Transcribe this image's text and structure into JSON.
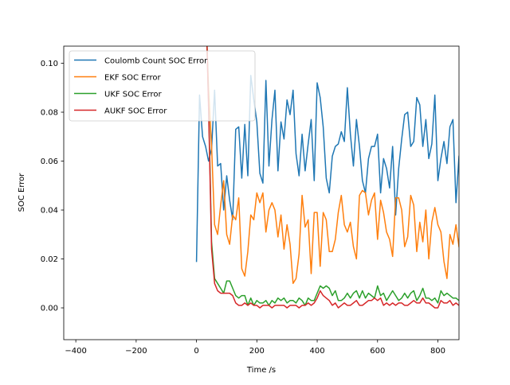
{
  "chart_data": {
    "type": "line",
    "xlabel": "Time /s",
    "ylabel": "SOC Error",
    "xlim": [
      -440,
      870
    ],
    "ylim": [
      -0.013,
      0.107
    ],
    "xticks": [
      -400,
      -200,
      0,
      200,
      400,
      600,
      800
    ],
    "xtick_labels": [
      "−400",
      "−200",
      "0",
      "200",
      "400",
      "600",
      "800"
    ],
    "yticks": [
      0.0,
      0.02,
      0.04,
      0.06,
      0.08,
      0.1
    ],
    "ytick_labels": [
      "0.00",
      "0.02",
      "0.04",
      "0.06",
      "0.08",
      "0.10"
    ],
    "legend_position": "top-left",
    "grid": false,
    "series": [
      {
        "name": "Coulomb Count SOC Error",
        "color": "#1f77b4",
        "x": [
          0,
          10,
          20,
          30,
          40,
          50,
          60,
          70,
          80,
          90,
          100,
          110,
          120,
          130,
          140,
          150,
          160,
          170,
          180,
          190,
          200,
          210,
          220,
          230,
          240,
          250,
          260,
          270,
          280,
          290,
          300,
          310,
          320,
          330,
          340,
          350,
          360,
          370,
          380,
          390,
          400,
          410,
          420,
          430,
          440,
          450,
          460,
          470,
          480,
          490,
          500,
          510,
          520,
          530,
          540,
          550,
          560,
          570,
          580,
          590,
          600,
          610,
          620,
          630,
          640,
          650,
          660,
          670,
          680,
          690,
          700,
          710,
          720,
          730,
          740,
          750,
          760,
          770,
          780,
          790,
          800,
          810,
          820,
          830,
          840,
          850,
          860,
          870
        ],
        "y": [
          0.019,
          0.087,
          0.07,
          0.066,
          0.06,
          0.065,
          0.089,
          0.058,
          0.059,
          0.04,
          0.054,
          0.044,
          0.036,
          0.073,
          0.074,
          0.053,
          0.075,
          0.054,
          0.095,
          0.085,
          0.076,
          0.055,
          0.051,
          0.093,
          0.058,
          0.077,
          0.089,
          0.056,
          0.076,
          0.069,
          0.085,
          0.079,
          0.089,
          0.063,
          0.054,
          0.071,
          0.056,
          0.067,
          0.077,
          0.052,
          0.092,
          0.086,
          0.074,
          0.053,
          0.047,
          0.062,
          0.066,
          0.067,
          0.072,
          0.068,
          0.09,
          0.071,
          0.058,
          0.077,
          0.066,
          0.052,
          0.047,
          0.061,
          0.066,
          0.066,
          0.071,
          0.047,
          0.061,
          0.057,
          0.049,
          0.066,
          0.038,
          0.057,
          0.069,
          0.079,
          0.08,
          0.066,
          0.068,
          0.086,
          0.083,
          0.066,
          0.077,
          0.061,
          0.067,
          0.087,
          0.052,
          0.061,
          0.068,
          0.059,
          0.074,
          0.077,
          0.043,
          0.062
        ]
      },
      {
        "name": "EKF SOC Error",
        "color": "#ff7f0e",
        "x": [
          35,
          40,
          50,
          60,
          70,
          80,
          90,
          100,
          110,
          120,
          130,
          140,
          150,
          160,
          170,
          180,
          190,
          200,
          210,
          220,
          230,
          240,
          250,
          260,
          270,
          280,
          290,
          300,
          310,
          320,
          330,
          340,
          350,
          360,
          370,
          380,
          390,
          400,
          410,
          420,
          430,
          440,
          450,
          460,
          470,
          480,
          490,
          500,
          510,
          520,
          530,
          540,
          550,
          560,
          570,
          580,
          590,
          600,
          610,
          620,
          630,
          640,
          650,
          660,
          670,
          680,
          690,
          700,
          710,
          720,
          730,
          740,
          750,
          760,
          770,
          780,
          790,
          800,
          810,
          820,
          830,
          840,
          850,
          860,
          870
        ],
        "y": [
          0.107,
          0.09,
          0.066,
          0.034,
          0.03,
          0.042,
          0.052,
          0.03,
          0.026,
          0.038,
          0.036,
          0.045,
          0.016,
          0.013,
          0.023,
          0.038,
          0.036,
          0.047,
          0.043,
          0.047,
          0.031,
          0.04,
          0.043,
          0.04,
          0.029,
          0.038,
          0.024,
          0.034,
          0.026,
          0.01,
          0.012,
          0.022,
          0.046,
          0.033,
          0.036,
          0.014,
          0.039,
          0.039,
          0.017,
          0.039,
          0.036,
          0.023,
          0.023,
          0.028,
          0.039,
          0.046,
          0.034,
          0.031,
          0.035,
          0.025,
          0.02,
          0.046,
          0.048,
          0.047,
          0.038,
          0.044,
          0.047,
          0.028,
          0.044,
          0.039,
          0.031,
          0.028,
          0.021,
          0.045,
          0.045,
          0.04,
          0.025,
          0.029,
          0.046,
          0.042,
          0.023,
          0.035,
          0.027,
          0.04,
          0.02,
          0.035,
          0.041,
          0.034,
          0.031,
          0.019,
          0.012,
          0.03,
          0.026,
          0.034,
          0.025
        ]
      },
      {
        "name": "UKF SOC Error",
        "color": "#2ca02c",
        "x": [
          35,
          40,
          50,
          60,
          70,
          80,
          90,
          100,
          110,
          120,
          130,
          140,
          150,
          160,
          170,
          180,
          190,
          200,
          210,
          220,
          230,
          240,
          250,
          260,
          270,
          280,
          290,
          300,
          310,
          320,
          330,
          340,
          350,
          360,
          370,
          380,
          390,
          400,
          410,
          420,
          430,
          440,
          450,
          460,
          470,
          480,
          490,
          500,
          510,
          520,
          530,
          540,
          550,
          560,
          570,
          580,
          590,
          600,
          610,
          620,
          630,
          640,
          650,
          660,
          670,
          680,
          690,
          700,
          710,
          720,
          730,
          740,
          750,
          760,
          770,
          780,
          790,
          800,
          810,
          820,
          830,
          840,
          850,
          860,
          870
        ],
        "y": [
          0.107,
          0.085,
          0.027,
          0.012,
          0.01,
          0.008,
          0.006,
          0.011,
          0.011,
          0.008,
          0.005,
          0.004,
          0.005,
          0.005,
          0.001,
          0.004,
          0.001,
          0.003,
          0.002,
          0.002,
          0.003,
          0.001,
          0.003,
          0.002,
          0.004,
          0.003,
          0.004,
          0.002,
          0.003,
          0.003,
          0.002,
          0.004,
          0.003,
          0.001,
          0.004,
          0.003,
          0.003,
          0.006,
          0.009,
          0.008,
          0.009,
          0.008,
          0.005,
          0.007,
          0.003,
          0.003,
          0.004,
          0.006,
          0.004,
          0.006,
          0.007,
          0.004,
          0.007,
          0.004,
          0.006,
          0.005,
          0.004,
          0.009,
          0.005,
          0.006,
          0.003,
          0.005,
          0.007,
          0.005,
          0.003,
          0.004,
          0.006,
          0.004,
          0.006,
          0.007,
          0.003,
          0.005,
          0.008,
          0.004,
          0.004,
          0.003,
          0.004,
          0.002,
          0.007,
          0.005,
          0.006,
          0.005,
          0.004,
          0.004,
          0.003
        ]
      },
      {
        "name": "AUKF SOC Error",
        "color": "#d62728",
        "x": [
          35,
          40,
          50,
          60,
          70,
          80,
          90,
          100,
          110,
          120,
          130,
          140,
          150,
          160,
          170,
          180,
          190,
          200,
          210,
          220,
          230,
          240,
          250,
          260,
          270,
          280,
          290,
          300,
          310,
          320,
          330,
          340,
          350,
          360,
          370,
          380,
          390,
          400,
          410,
          420,
          430,
          440,
          450,
          460,
          470,
          480,
          490,
          500,
          510,
          520,
          530,
          540,
          550,
          560,
          570,
          580,
          590,
          600,
          610,
          620,
          630,
          640,
          650,
          660,
          670,
          680,
          690,
          700,
          710,
          720,
          730,
          740,
          750,
          760,
          770,
          780,
          790,
          800,
          810,
          820,
          830,
          840,
          850,
          860,
          870
        ],
        "y": [
          0.107,
          0.082,
          0.024,
          0.01,
          0.007,
          0.006,
          0.006,
          0.006,
          0.006,
          0.005,
          0.002,
          0.001,
          0.001,
          0.002,
          0.001,
          0.002,
          0.001,
          0.001,
          0.0,
          0.001,
          0.001,
          0.001,
          0.0,
          0.001,
          0.001,
          0.001,
          0.001,
          0.0,
          0.001,
          0.001,
          0.001,
          0.0,
          0.001,
          0.001,
          0.002,
          0.001,
          0.002,
          0.004,
          0.007,
          0.005,
          0.004,
          0.003,
          0.001,
          0.002,
          0.0,
          0.001,
          0.002,
          0.001,
          0.001,
          0.002,
          0.003,
          0.001,
          0.001,
          0.002,
          0.003,
          0.003,
          0.004,
          0.003,
          0.004,
          0.001,
          0.002,
          0.001,
          0.002,
          0.001,
          0.002,
          0.002,
          0.001,
          0.001,
          0.002,
          0.003,
          0.002,
          0.002,
          0.004,
          0.002,
          0.002,
          0.001,
          0.0,
          0.0,
          0.003,
          0.002,
          0.002,
          0.003,
          0.001,
          0.002,
          0.001
        ]
      }
    ]
  }
}
